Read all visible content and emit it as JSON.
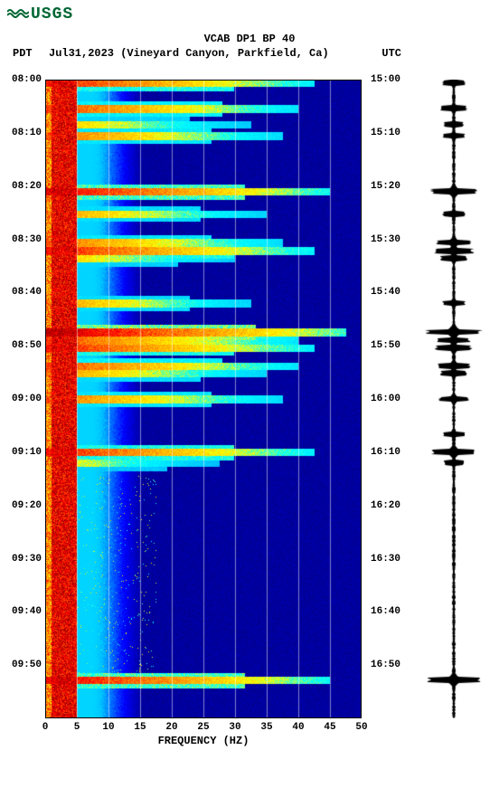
{
  "logo_text": "USGS",
  "title": "VCAB DP1 BP 40",
  "tz_left": "PDT",
  "date_location": "Jul31,2023 (Vineyard Canyon, Parkfield, Ca)",
  "tz_right": "UTC",
  "x_label": "FREQUENCY (HZ)",
  "footer": "",
  "spectrogram": {
    "type": "spectrogram",
    "xlim": [
      0,
      50
    ],
    "xtick_step": 5,
    "xticks": [
      0,
      5,
      10,
      15,
      20,
      25,
      30,
      35,
      40,
      45,
      50
    ],
    "y_left_labels": [
      "08:00",
      "08:10",
      "08:20",
      "08:30",
      "08:40",
      "08:50",
      "09:00",
      "09:10",
      "09:20",
      "09:30",
      "09:40",
      "09:50"
    ],
    "y_right_labels": [
      "15:00",
      "15:10",
      "15:20",
      "15:30",
      "15:40",
      "15:50",
      "16:00",
      "16:10",
      "16:20",
      "16:30",
      "16:40",
      "16:50"
    ],
    "y_positions": [
      0,
      0.0833,
      0.1667,
      0.25,
      0.3333,
      0.4167,
      0.5,
      0.5833,
      0.6667,
      0.75,
      0.8333,
      0.9167
    ],
    "colormap": {
      "stops": [
        [
          0.0,
          "#00008b"
        ],
        [
          0.15,
          "#0000ff"
        ],
        [
          0.3,
          "#00bfff"
        ],
        [
          0.45,
          "#00ffff"
        ],
        [
          0.55,
          "#ffff00"
        ],
        [
          0.7,
          "#ff8c00"
        ],
        [
          0.85,
          "#ff0000"
        ],
        [
          1.0,
          "#8b0000"
        ]
      ]
    },
    "background_color": "#00008b",
    "grid_color": "#ffffff",
    "grid_alpha": 0.5,
    "freq_cols": 100,
    "time_rows": 420,
    "low_freq_energy_width": 0.1,
    "mid_freq_decay": 0.18,
    "events": [
      {
        "y": 0.005,
        "strength": 0.9,
        "width": 0.85
      },
      {
        "y": 0.045,
        "strength": 0.85,
        "width": 0.8
      },
      {
        "y": 0.07,
        "strength": 0.7,
        "width": 0.65
      },
      {
        "y": 0.088,
        "strength": 0.8,
        "width": 0.75
      },
      {
        "y": 0.175,
        "strength": 0.95,
        "width": 0.9
      },
      {
        "y": 0.21,
        "strength": 0.75,
        "width": 0.7
      },
      {
        "y": 0.255,
        "strength": 0.8,
        "width": 0.75
      },
      {
        "y": 0.268,
        "strength": 0.9,
        "width": 0.85
      },
      {
        "y": 0.28,
        "strength": 0.7,
        "width": 0.6
      },
      {
        "y": 0.35,
        "strength": 0.75,
        "width": 0.65
      },
      {
        "y": 0.395,
        "strength": 1.0,
        "width": 0.95
      },
      {
        "y": 0.408,
        "strength": 0.85,
        "width": 0.8
      },
      {
        "y": 0.42,
        "strength": 0.9,
        "width": 0.85
      },
      {
        "y": 0.448,
        "strength": 0.85,
        "width": 0.8
      },
      {
        "y": 0.46,
        "strength": 0.75,
        "width": 0.7
      },
      {
        "y": 0.5,
        "strength": 0.8,
        "width": 0.75
      },
      {
        "y": 0.583,
        "strength": 0.9,
        "width": 0.85
      },
      {
        "y": 0.6,
        "strength": 0.65,
        "width": 0.55
      },
      {
        "y": 0.94,
        "strength": 0.95,
        "width": 0.9
      }
    ],
    "waveform_events": [
      {
        "y": 0.005,
        "amp": 0.35
      },
      {
        "y": 0.045,
        "amp": 0.4
      },
      {
        "y": 0.07,
        "amp": 0.3
      },
      {
        "y": 0.088,
        "amp": 0.35
      },
      {
        "y": 0.175,
        "amp": 0.7
      },
      {
        "y": 0.21,
        "amp": 0.35
      },
      {
        "y": 0.255,
        "amp": 0.55
      },
      {
        "y": 0.268,
        "amp": 0.6
      },
      {
        "y": 0.28,
        "amp": 0.4
      },
      {
        "y": 0.35,
        "amp": 0.35
      },
      {
        "y": 0.395,
        "amp": 0.85
      },
      {
        "y": 0.408,
        "amp": 0.5
      },
      {
        "y": 0.42,
        "amp": 0.55
      },
      {
        "y": 0.448,
        "amp": 0.5
      },
      {
        "y": 0.46,
        "amp": 0.4
      },
      {
        "y": 0.5,
        "amp": 0.45
      },
      {
        "y": 0.555,
        "amp": 0.35
      },
      {
        "y": 0.583,
        "amp": 0.7
      },
      {
        "y": 0.6,
        "amp": 0.3
      },
      {
        "y": 0.94,
        "amp": 0.8
      }
    ]
  },
  "waveform": {
    "type": "waveform",
    "color": "#000000",
    "base_noise": 0.04
  },
  "colors": {
    "logo": "#006633",
    "text": "#000000",
    "background": "#ffffff"
  },
  "fonts": {
    "mono": "Courier New",
    "title_size": 12,
    "label_size": 11
  }
}
